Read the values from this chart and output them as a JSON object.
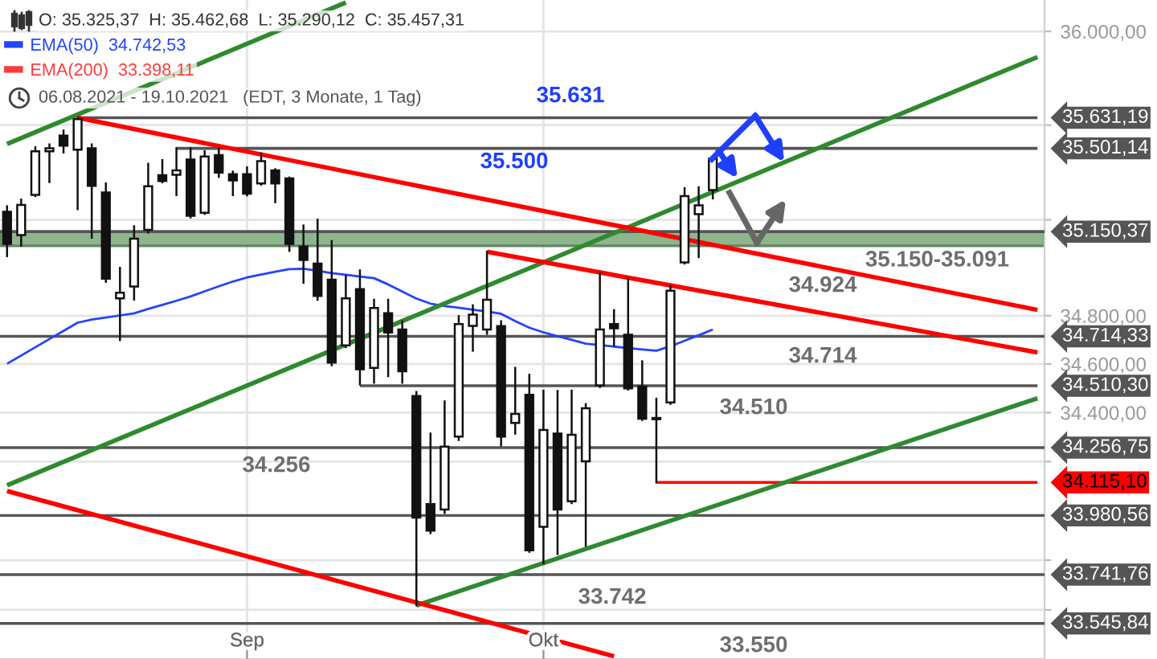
{
  "chart_data": {
    "type": "candlestick",
    "title": "O: 35.325,37  H: 35.462,68  L: 35.290,12  C: 35.457,31",
    "subtitle": "06.08.2021 - 19.10.2021   (EDT, 3 Monate, 1 Tag)",
    "categories": [
      null,
      null,
      null,
      null,
      null,
      null,
      null,
      null,
      null,
      null,
      null,
      null,
      null,
      null,
      null,
      null,
      null,
      "Sep",
      null,
      null,
      null,
      null,
      null,
      null,
      null,
      null,
      null,
      null,
      null,
      null,
      null,
      null,
      null,
      null,
      null,
      null,
      null,
      null,
      "Okt",
      null,
      null,
      null,
      null,
      null,
      null,
      null,
      null,
      null,
      null,
      null,
      null,
      null,
      null,
      null,
      null,
      null,
      null,
      null,
      null,
      null,
      null,
      null,
      null,
      null,
      null,
      null,
      null,
      null,
      null,
      null,
      null,
      null,
      null,
      null
    ],
    "ohlc": [
      [
        35234,
        35257,
        35048,
        35099
      ],
      [
        35136,
        35285,
        35092,
        35263
      ],
      [
        35305,
        35506,
        35300,
        35489
      ],
      [
        35489,
        35518,
        35359,
        35502
      ],
      [
        35555,
        35577,
        35484,
        35513
      ],
      [
        35496,
        35631.19,
        35245,
        35625
      ],
      [
        35502,
        35518,
        35125,
        35343
      ],
      [
        35315,
        35353,
        34941,
        34954
      ],
      [
        34872,
        34999,
        34699,
        34895
      ],
      [
        34921,
        35173,
        34867,
        35121
      ],
      [
        35158,
        35436,
        35147,
        35341
      ],
      [
        35388,
        35452,
        35358,
        35363
      ],
      [
        35390,
        35502,
        35304,
        35408
      ],
      [
        35454,
        35502,
        35210,
        35217
      ],
      [
        35230,
        35489,
        35225,
        35467
      ],
      [
        35473,
        35502,
        35381,
        35399
      ],
      [
        35392,
        35403,
        35304,
        35366
      ],
      [
        35392,
        35421,
        35303,
        35310
      ],
      [
        35353,
        35480,
        35348,
        35447
      ],
      [
        35408,
        35413,
        35274,
        35353
      ],
      [
        35374,
        35378,
        35070,
        35099
      ],
      [
        35088,
        35176,
        34937,
        35032
      ],
      [
        35017,
        35201,
        34866,
        34882
      ],
      [
        34950,
        35111,
        34595,
        34606
      ],
      [
        34677,
        34965,
        34670,
        34872
      ],
      [
        34910,
        34988,
        34516,
        34578
      ],
      [
        34584,
        34866,
        34523,
        34832
      ],
      [
        34810,
        34866,
        34550,
        34730
      ],
      [
        34743,
        34777,
        34523,
        34570
      ],
      [
        34468,
        34485,
        33618,
        33972
      ],
      [
        34027,
        34314,
        33909,
        33919
      ],
      [
        34005,
        34446,
        33991,
        34261
      ],
      [
        34302,
        34798,
        34288,
        34765
      ],
      [
        34758,
        34843,
        34655,
        34804
      ],
      [
        34743,
        35066,
        34725,
        34866
      ],
      [
        34757,
        34777,
        34265,
        34302
      ],
      [
        34358,
        34584,
        34314,
        34395
      ],
      [
        34473,
        34556,
        33834,
        33840
      ],
      [
        33935,
        34490,
        33787,
        34329
      ],
      [
        34314,
        34489,
        33825,
        34005
      ],
      [
        34038,
        34490,
        34031,
        34309
      ],
      [
        34201,
        34435,
        33858,
        34418
      ],
      [
        34512,
        34977,
        34505,
        34743
      ],
      [
        34765,
        34823,
        34677,
        34748
      ],
      [
        34721,
        34954,
        34495,
        34500
      ],
      [
        34507,
        34611,
        34370,
        34375
      ],
      [
        34378,
        34457,
        34115.1,
        34373
      ],
      [
        34442,
        34923,
        34436,
        34904
      ],
      [
        35022,
        35333,
        35017,
        35300
      ],
      [
        35224,
        35337,
        35044,
        35261
      ],
      [
        35325.37,
        35462.68,
        35290.12,
        35457.31
      ],
      null,
      null,
      null,
      null,
      null,
      null,
      null,
      null,
      null,
      null,
      null,
      null,
      null,
      null,
      null,
      null,
      null,
      null,
      null,
      null,
      null,
      null,
      null
    ],
    "series": [
      {
        "name": "EMA(50)  34.742,53",
        "type": "line",
        "color": "#2244ff",
        "values": [
          34601,
          34635,
          34669,
          34703,
          34737,
          34771,
          34784,
          34792,
          34801,
          34810,
          34828,
          34845,
          34862,
          34880,
          34901,
          34922,
          34942,
          34959,
          34971,
          34983,
          34994,
          34995,
          34987,
          34977,
          34970,
          34963,
          34956,
          34930,
          34900,
          34871,
          34850,
          34840,
          34833,
          34825,
          34817,
          34808,
          34778,
          34750,
          34731,
          34715,
          34700,
          34684,
          34678,
          34672,
          34666,
          34660,
          34655,
          34673,
          34696,
          34719,
          34742.53,
          null,
          null,
          null,
          null,
          null,
          null,
          null,
          null,
          null,
          null,
          null,
          null,
          null,
          null,
          null,
          null,
          null,
          null,
          null,
          null,
          null,
          null,
          null
        ]
      },
      {
        "name": "EMA(200)  33.398,11",
        "type": "line",
        "color": "#ff3b3b",
        "values": [
          null,
          null,
          null,
          null,
          null,
          null,
          null,
          null,
          null,
          null,
          null,
          null,
          null,
          null,
          null,
          null,
          null,
          null,
          null,
          null,
          null,
          null,
          null,
          null,
          null,
          null,
          null,
          null,
          null,
          null,
          null,
          null,
          null,
          null,
          null,
          null,
          null,
          null,
          null,
          null,
          null,
          null,
          null,
          null,
          null,
          null,
          null,
          null,
          null,
          null,
          null,
          null,
          null,
          null,
          null,
          null,
          null,
          null,
          null,
          null,
          null,
          null,
          null,
          null,
          null,
          null,
          null,
          null,
          null,
          null,
          null,
          null,
          null,
          null
        ]
      },
      {
        "type": "line",
        "color": "#555555",
        "values": [
          null,
          null,
          null,
          null,
          null,
          35631.19,
          null,
          null,
          null,
          null,
          null,
          null,
          null,
          null,
          null,
          null,
          null,
          null,
          null,
          null,
          null,
          null,
          null,
          null,
          null,
          null,
          null,
          null,
          null,
          null,
          null,
          null,
          null,
          null,
          null,
          null,
          null,
          null,
          null,
          null,
          null,
          null,
          null,
          null,
          null,
          null,
          null,
          null,
          null,
          null,
          null,
          null,
          null,
          null,
          null,
          null,
          null,
          null,
          null,
          null,
          null,
          null,
          null,
          null,
          null,
          null,
          null,
          null,
          null,
          null,
          null,
          null,
          null,
          35631.19
        ],
        "value_labels": [
          null,
          null,
          null,
          null,
          null,
          null,
          null,
          null,
          null,
          null,
          null,
          null,
          null,
          null,
          null,
          null,
          null,
          null,
          null,
          null,
          null,
          null,
          null,
          null,
          null,
          null,
          null,
          null,
          null,
          null,
          null,
          null,
          null,
          null,
          null,
          null,
          null,
          null,
          null,
          null,
          null,
          null,
          null,
          null,
          null,
          null,
          null,
          null,
          null,
          null,
          null,
          null,
          null,
          null,
          null,
          null,
          null,
          null,
          null,
          null,
          null,
          null,
          null,
          null,
          null,
          null,
          null,
          null,
          null,
          null,
          null,
          null,
          null,
          "35.631,19"
        ]
      },
      {
        "type": "line",
        "color": "#555555",
        "values": [
          null,
          null,
          null,
          null,
          null,
          null,
          null,
          null,
          null,
          null,
          null,
          null,
          35501.14,
          null,
          null,
          null,
          null,
          null,
          null,
          null,
          null,
          null,
          null,
          null,
          null,
          null,
          null,
          null,
          null,
          null,
          null,
          null,
          null,
          null,
          null,
          null,
          null,
          null,
          null,
          null,
          null,
          null,
          null,
          null,
          null,
          null,
          null,
          null,
          null,
          null,
          null,
          null,
          null,
          null,
          null,
          null,
          null,
          null,
          null,
          null,
          null,
          null,
          null,
          null,
          null,
          null,
          null,
          null,
          null,
          null,
          null,
          null,
          null,
          35501.14
        ],
        "value_labels": [
          null,
          null,
          null,
          null,
          null,
          null,
          null,
          null,
          null,
          null,
          null,
          null,
          null,
          null,
          null,
          null,
          null,
          null,
          null,
          null,
          null,
          null,
          null,
          null,
          null,
          null,
          null,
          null,
          null,
          null,
          null,
          null,
          null,
          null,
          null,
          null,
          null,
          null,
          null,
          null,
          null,
          null,
          null,
          null,
          null,
          null,
          null,
          null,
          null,
          null,
          null,
          null,
          null,
          null,
          null,
          null,
          null,
          null,
          null,
          null,
          null,
          null,
          null,
          null,
          null,
          null,
          null,
          null,
          null,
          null,
          null,
          null,
          null,
          "35.501,14"
        ]
      },
      {
        "type": "line",
        "color": "#555555",
        "values": [
          null,
          null,
          null,
          null,
          null,
          null,
          null,
          null,
          null,
          null,
          null,
          null,
          null,
          null,
          null,
          null,
          null,
          null,
          null,
          null,
          null,
          null,
          null,
          null,
          null,
          34510.3,
          null,
          null,
          null,
          null,
          null,
          null,
          null,
          null,
          null,
          null,
          null,
          null,
          null,
          null,
          null,
          null,
          null,
          null,
          null,
          null,
          null,
          null,
          null,
          null,
          null,
          null,
          null,
          null,
          null,
          null,
          null,
          null,
          null,
          null,
          null,
          null,
          null,
          null,
          null,
          null,
          null,
          null,
          null,
          null,
          null,
          null,
          null,
          34510.3
        ],
        "value_labels": [
          null,
          null,
          null,
          null,
          null,
          null,
          null,
          null,
          null,
          null,
          null,
          null,
          null,
          null,
          null,
          null,
          null,
          null,
          null,
          null,
          null,
          null,
          null,
          null,
          null,
          null,
          null,
          null,
          null,
          null,
          null,
          null,
          null,
          null,
          null,
          null,
          null,
          null,
          null,
          null,
          null,
          null,
          null,
          null,
          null,
          null,
          null,
          null,
          null,
          null,
          null,
          null,
          null,
          null,
          null,
          null,
          null,
          null,
          null,
          null,
          null,
          null,
          null,
          null,
          null,
          null,
          null,
          null,
          null,
          null,
          null,
          null,
          null,
          "34.510,30"
        ]
      },
      {
        "type": "line",
        "color": "#ff0000",
        "values": [
          null,
          null,
          null,
          null,
          null,
          null,
          null,
          null,
          null,
          null,
          null,
          null,
          null,
          null,
          null,
          null,
          null,
          null,
          null,
          null,
          null,
          null,
          null,
          null,
          null,
          null,
          null,
          null,
          null,
          null,
          null,
          null,
          null,
          null,
          null,
          null,
          null,
          null,
          null,
          null,
          null,
          null,
          null,
          null,
          null,
          null,
          34115.1,
          null,
          null,
          null,
          null,
          null,
          null,
          null,
          null,
          null,
          null,
          null,
          null,
          null,
          null,
          null,
          null,
          null,
          null,
          null,
          null,
          null,
          null,
          null,
          null,
          null,
          null,
          34115.1
        ],
        "value_labels": [
          null,
          null,
          null,
          null,
          null,
          null,
          null,
          null,
          null,
          null,
          null,
          null,
          null,
          null,
          null,
          null,
          null,
          null,
          null,
          null,
          null,
          null,
          null,
          null,
          null,
          null,
          null,
          null,
          null,
          null,
          null,
          null,
          null,
          null,
          null,
          null,
          null,
          null,
          null,
          null,
          null,
          null,
          null,
          null,
          null,
          null,
          null,
          null,
          null,
          null,
          null,
          null,
          null,
          null,
          null,
          null,
          null,
          null,
          null,
          null,
          null,
          null,
          null,
          null,
          null,
          null,
          null,
          null,
          null,
          null,
          null,
          null,
          null,
          "34.115,10"
        ]
      },
      {
        "type": "line",
        "color": "#2f8a2f",
        "values": [
          35520,
          null,
          null,
          null,
          null,
          null,
          null,
          null,
          null,
          null,
          null,
          null,
          null,
          null,
          null,
          null,
          null,
          null,
          null,
          null,
          null,
          null,
          null,
          null,
          36124,
          null,
          null,
          null,
          null,
          null,
          null,
          null,
          null,
          null,
          null,
          null,
          null,
          null,
          null,
          null,
          null,
          null,
          null,
          null,
          null,
          null,
          null,
          null,
          null,
          null,
          null,
          null,
          null,
          null,
          null,
          null,
          null,
          null,
          null,
          null,
          null,
          null,
          null,
          null,
          null,
          null,
          null,
          null,
          null,
          null,
          null,
          null,
          null,
          null
        ]
      },
      {
        "type": "line",
        "color": "#2f8a2f",
        "values": [
          34103,
          null,
          null,
          null,
          null,
          null,
          null,
          null,
          null,
          null,
          null,
          null,
          null,
          null,
          null,
          null,
          null,
          null,
          null,
          null,
          null,
          null,
          null,
          null,
          null,
          null,
          null,
          null,
          null,
          null,
          null,
          null,
          null,
          null,
          null,
          null,
          null,
          null,
          null,
          null,
          null,
          null,
          null,
          null,
          null,
          null,
          null,
          null,
          null,
          null,
          null,
          null,
          null,
          null,
          null,
          null,
          null,
          null,
          null,
          null,
          null,
          null,
          null,
          null,
          null,
          null,
          null,
          null,
          null,
          null,
          null,
          null,
          null,
          35890
        ]
      },
      {
        "type": "line",
        "color": "#2f8a2f",
        "values": [
          null,
          null,
          null,
          null,
          null,
          null,
          null,
          null,
          null,
          null,
          null,
          null,
          null,
          null,
          null,
          null,
          null,
          null,
          null,
          null,
          null,
          null,
          null,
          null,
          null,
          null,
          null,
          null,
          null,
          33618,
          null,
          null,
          null,
          null,
          null,
          null,
          null,
          null,
          null,
          null,
          null,
          null,
          null,
          null,
          null,
          null,
          null,
          null,
          null,
          null,
          null,
          null,
          null,
          null,
          null,
          null,
          null,
          null,
          null,
          null,
          null,
          null,
          null,
          null,
          null,
          null,
          null,
          null,
          null,
          null,
          null,
          null,
          null,
          34459
        ]
      },
      {
        "type": "line",
        "color": "#ff0000",
        "values": [
          null,
          null,
          null,
          null,
          null,
          35631.19,
          null,
          null,
          null,
          null,
          null,
          null,
          null,
          null,
          null,
          null,
          null,
          null,
          null,
          null,
          null,
          null,
          null,
          null,
          null,
          null,
          null,
          null,
          null,
          null,
          null,
          null,
          null,
          null,
          null,
          null,
          null,
          null,
          null,
          null,
          null,
          null,
          null,
          null,
          null,
          null,
          null,
          null,
          null,
          null,
          null,
          null,
          null,
          null,
          null,
          null,
          null,
          null,
          null,
          null,
          null,
          null,
          null,
          null,
          null,
          null,
          null,
          null,
          null,
          null,
          null,
          null,
          null,
          34824
        ]
      },
      {
        "type": "line",
        "color": "#ff0000",
        "values": [
          null,
          null,
          null,
          null,
          null,
          null,
          null,
          null,
          null,
          null,
          null,
          null,
          null,
          null,
          null,
          null,
          null,
          null,
          null,
          null,
          null,
          null,
          null,
          null,
          null,
          null,
          null,
          null,
          null,
          null,
          null,
          null,
          null,
          null,
          35066,
          null,
          null,
          null,
          null,
          null,
          null,
          null,
          null,
          null,
          null,
          null,
          null,
          null,
          null,
          null,
          null,
          null,
          null,
          null,
          null,
          null,
          null,
          null,
          null,
          null,
          null,
          null,
          null,
          null,
          null,
          null,
          null,
          null,
          null,
          null,
          null,
          null,
          null,
          34648
        ]
      },
      {
        "type": "line",
        "color": "#ff0000",
        "values": [
          34080,
          null,
          null,
          null,
          null,
          null,
          null,
          null,
          null,
          null,
          null,
          null,
          null,
          null,
          null,
          null,
          null,
          null,
          null,
          null,
          null,
          null,
          null,
          null,
          null,
          null,
          null,
          null,
          null,
          null,
          null,
          null,
          null,
          null,
          null,
          null,
          null,
          null,
          null,
          null,
          null,
          null,
          null,
          33415,
          null,
          null,
          null,
          null,
          null,
          null,
          null,
          null,
          null,
          null,
          null,
          null,
          null,
          null,
          null,
          null,
          null,
          null,
          null,
          null,
          null,
          null,
          null,
          null,
          null,
          null,
          null,
          null,
          null,
          null
        ]
      }
    ],
    "ref_lines": [
      {
        "axis": "y",
        "value": 35150.37,
        "label": "35.150,37",
        "color": "#555555"
      },
      {
        "axis": "y",
        "value": 34714.33,
        "label": "34.714,33",
        "color": "#555555"
      },
      {
        "axis": "y",
        "value": 34256.75,
        "label": "34.256,75",
        "color": "#555555"
      },
      {
        "axis": "y",
        "value": 33980.56,
        "label": "33.980,56",
        "color": "#555555"
      },
      {
        "axis": "y",
        "value": 33741.76,
        "label": "33.741,76",
        "color": "#555555"
      },
      {
        "axis": "y",
        "value": 33545.84,
        "label": "33.545,84",
        "color": "#555555"
      }
    ],
    "bands": [
      {
        "axis": "y",
        "from": 35091.36,
        "to": 35150.37,
        "label": "35.150-35.091",
        "color": "#8db68d"
      }
    ],
    "annotations": [
      "35.631",
      "35.500",
      "34.924",
      "34.714",
      "34.510",
      "34.256",
      "33.742",
      "33.550"
    ],
    "ylim": [
      33404,
      36135
    ],
    "log": true,
    "yticks": [
      {
        "value": 36000,
        "label": "36.000,00"
      },
      {
        "value": 35600,
        "label": null
      },
      {
        "value": 35200,
        "label": null
      },
      {
        "value": 34800,
        "label": "34.800,00"
      },
      {
        "value": 34600,
        "label": "34.600,00"
      },
      {
        "value": 34400,
        "label": "34.400,00"
      },
      {
        "value": 34200,
        "label": null
      },
      {
        "value": 33800,
        "label": null
      },
      {
        "value": 33600,
        "label": null
      }
    ],
    "grid": true,
    "legend": "top left"
  }
}
